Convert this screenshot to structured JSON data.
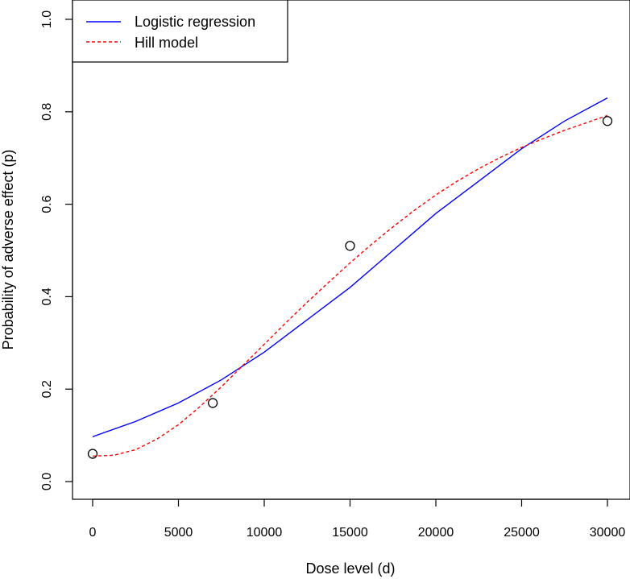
{
  "chart_data": {
    "type": "line",
    "title": "",
    "xlabel": "Dose level (d)",
    "ylabel": "Probability of adverse effect (p)",
    "xlim": [
      0,
      30000
    ],
    "ylim": [
      0.0,
      1.0
    ],
    "xticks": [
      "0",
      "5000",
      "10000",
      "15000",
      "20000",
      "25000",
      "30000"
    ],
    "yticks": [
      "0.0",
      "0.2",
      "0.4",
      "0.6",
      "0.8",
      "1.0"
    ],
    "xtick_values": [
      0,
      5000,
      10000,
      15000,
      20000,
      25000,
      30000
    ],
    "ytick_values": [
      0.0,
      0.2,
      0.4,
      0.6,
      0.8,
      1.0
    ],
    "grid": false,
    "legend_position": "top-left",
    "points": {
      "x": [
        0,
        7000,
        15000,
        30000
      ],
      "y": [
        0.06,
        0.17,
        0.51,
        0.78
      ],
      "marker": "open-circle",
      "color": "#000000"
    },
    "series": [
      {
        "name": "Logistic regression",
        "color": "#0000ff",
        "dash": "solid",
        "x": [
          0,
          2500,
          5000,
          7500,
          10000,
          12500,
          15000,
          17500,
          20000,
          22500,
          25000,
          27500,
          30000
        ],
        "y": [
          0.097,
          0.13,
          0.17,
          0.22,
          0.28,
          0.35,
          0.42,
          0.5,
          0.58,
          0.65,
          0.72,
          0.78,
          0.83
        ]
      },
      {
        "name": "Hill model",
        "color": "#ff0000",
        "dash": "dashed",
        "x": [
          0,
          1250,
          2500,
          3750,
          5000,
          6250,
          7500,
          8750,
          10000,
          11250,
          12500,
          13750,
          15000,
          16250,
          17500,
          18750,
          20000,
          21250,
          22500,
          23750,
          25000,
          26250,
          27500,
          28750,
          30000
        ],
        "y": [
          0.055,
          0.057,
          0.069,
          0.092,
          0.123,
          0.162,
          0.205,
          0.251,
          0.297,
          0.343,
          0.388,
          0.431,
          0.473,
          0.513,
          0.551,
          0.587,
          0.62,
          0.65,
          0.677,
          0.701,
          0.723,
          0.742,
          0.76,
          0.776,
          0.792
        ]
      }
    ]
  }
}
